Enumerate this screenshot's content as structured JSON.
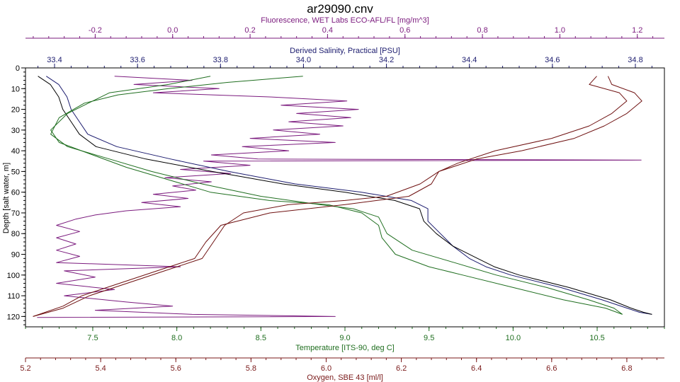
{
  "chart_data": {
    "type": "line",
    "title": "ar29090.cnv",
    "y_axis": {
      "label": "Depth [salt water, m]",
      "range": [
        0,
        125
      ],
      "inverted": true,
      "ticks": [
        0,
        10,
        20,
        30,
        40,
        50,
        60,
        70,
        80,
        90,
        100,
        110,
        120
      ]
    },
    "x_axes": [
      {
        "id": "fluorescence",
        "position": "top-outer",
        "label": "Fluorescence, WET Labs ECO-AFL/FL [mg/m^3]",
        "color": "#7b1b7e",
        "range": [
          -0.38,
          1.27
        ],
        "ticks": [
          "-0.2",
          "0.0",
          "0.2",
          "0.4",
          "0.6",
          "0.8",
          "1.0",
          "1.2"
        ]
      },
      {
        "id": "salinity",
        "position": "top-inner",
        "label": "Derived Salinity, Practical [PSU]",
        "color": "#1b1b6e",
        "range": [
          33.33,
          34.87
        ],
        "ticks": [
          "33.4",
          "33.6",
          "33.8",
          "34.0",
          "34.2",
          "34.4",
          "34.6",
          "34.8"
        ]
      },
      {
        "id": "temperature",
        "position": "bottom-inner",
        "label": "Temperature [ITS-90, deg C]",
        "color": "#1f6e1f",
        "range": [
          7.1,
          10.9
        ],
        "ticks": [
          "7.5",
          "8.0",
          "8.5",
          "9.0",
          "9.5",
          "10.0",
          "10.5"
        ]
      },
      {
        "id": "oxygen",
        "position": "bottom-outer",
        "label": "Oxygen, SBE 43 [ml/l]",
        "color": "#7a1a1a",
        "range": [
          5.2,
          6.9
        ],
        "ticks": [
          "5.2",
          "5.4",
          "5.6",
          "5.8",
          "6.0",
          "6.2",
          "6.4",
          "6.6",
          "6.8"
        ]
      }
    ],
    "grid": false,
    "legend": "none",
    "series": [
      {
        "axis": "fluorescence",
        "color": "#7b1b7e",
        "points": [
          [
            -0.15,
            4
          ],
          [
            0.05,
            6
          ],
          [
            -0.1,
            8
          ],
          [
            0.12,
            10
          ],
          [
            -0.05,
            12
          ],
          [
            0.25,
            14
          ],
          [
            0.45,
            16
          ],
          [
            0.28,
            18
          ],
          [
            0.48,
            20
          ],
          [
            0.32,
            22
          ],
          [
            0.46,
            24
          ],
          [
            0.3,
            26
          ],
          [
            0.44,
            28
          ],
          [
            0.26,
            30
          ],
          [
            0.38,
            32
          ],
          [
            0.2,
            34
          ],
          [
            0.42,
            36
          ],
          [
            0.18,
            38
          ],
          [
            0.3,
            40
          ],
          [
            0.1,
            42
          ],
          [
            0.22,
            44
          ],
          [
            1.21,
            44.5
          ],
          [
            0.08,
            45
          ],
          [
            0.2,
            47
          ],
          [
            0.02,
            49
          ],
          [
            0.15,
            51
          ],
          [
            -0.02,
            53
          ],
          [
            0.1,
            55
          ],
          [
            0.0,
            57
          ],
          [
            0.06,
            59
          ],
          [
            -0.05,
            61
          ],
          [
            0.04,
            63
          ],
          [
            -0.08,
            65
          ],
          [
            0.02,
            67
          ],
          [
            -0.12,
            69
          ],
          [
            -0.2,
            71
          ],
          [
            -0.25,
            73
          ],
          [
            -0.3,
            76
          ],
          [
            -0.24,
            79
          ],
          [
            -0.3,
            82
          ],
          [
            -0.25,
            85
          ],
          [
            -0.3,
            88
          ],
          [
            -0.24,
            91
          ],
          [
            -0.3,
            94
          ],
          [
            0.02,
            96
          ],
          [
            -0.28,
            98
          ],
          [
            -0.2,
            101
          ],
          [
            -0.3,
            104
          ],
          [
            -0.15,
            107
          ],
          [
            -0.28,
            110
          ],
          [
            -0.12,
            113
          ],
          [
            0.0,
            115
          ],
          [
            -0.2,
            117
          ],
          [
            0.05,
            119
          ],
          [
            0.42,
            120
          ],
          [
            -0.35,
            120.5
          ]
        ]
      },
      {
        "axis": "salinity",
        "color": "#1b1b6e",
        "points": [
          [
            33.38,
            4
          ],
          [
            33.41,
            8
          ],
          [
            33.43,
            14
          ],
          [
            33.44,
            20
          ],
          [
            33.46,
            26
          ],
          [
            33.48,
            32
          ],
          [
            33.55,
            38
          ],
          [
            33.68,
            44
          ],
          [
            33.82,
            50
          ],
          [
            33.98,
            56
          ],
          [
            34.14,
            60
          ],
          [
            34.26,
            64
          ],
          [
            34.3,
            68
          ],
          [
            34.3,
            74
          ],
          [
            34.33,
            80
          ],
          [
            34.36,
            86
          ],
          [
            34.4,
            92
          ],
          [
            34.44,
            96
          ],
          [
            34.5,
            100
          ],
          [
            34.62,
            106
          ],
          [
            34.72,
            112
          ],
          [
            34.78,
            116
          ],
          [
            34.81,
            118
          ],
          [
            34.84,
            119
          ]
        ]
      },
      {
        "axis": "salinity",
        "color": "#000000",
        "points": [
          [
            33.36,
            4
          ],
          [
            33.39,
            8
          ],
          [
            33.41,
            14
          ],
          [
            33.42,
            20
          ],
          [
            33.44,
            26
          ],
          [
            33.46,
            32
          ],
          [
            33.5,
            38
          ],
          [
            33.62,
            44
          ],
          [
            33.78,
            50
          ],
          [
            33.95,
            56
          ],
          [
            34.1,
            60
          ],
          [
            34.22,
            64
          ],
          [
            34.28,
            68
          ],
          [
            34.29,
            74
          ],
          [
            34.32,
            80
          ],
          [
            34.36,
            86
          ],
          [
            34.42,
            92
          ],
          [
            34.46,
            96
          ],
          [
            34.52,
            100
          ],
          [
            34.64,
            106
          ],
          [
            34.74,
            112
          ],
          [
            34.79,
            116
          ],
          [
            34.82,
            118
          ],
          [
            34.84,
            119
          ]
        ]
      },
      {
        "axis": "temperature",
        "color": "#1f6e1f",
        "points": [
          [
            8.2,
            4
          ],
          [
            7.95,
            8
          ],
          [
            7.6,
            12
          ],
          [
            7.5,
            16
          ],
          [
            7.35,
            22
          ],
          [
            7.25,
            30
          ],
          [
            7.3,
            36
          ],
          [
            7.5,
            42
          ],
          [
            7.7,
            48
          ],
          [
            7.95,
            54
          ],
          [
            8.2,
            60
          ],
          [
            8.55,
            64
          ],
          [
            8.9,
            66
          ],
          [
            9.1,
            70
          ],
          [
            9.2,
            76
          ],
          [
            9.22,
            82
          ],
          [
            9.3,
            90
          ],
          [
            9.5,
            96
          ],
          [
            9.7,
            100
          ],
          [
            10.0,
            106
          ],
          [
            10.3,
            112
          ],
          [
            10.55,
            116
          ],
          [
            10.65,
            119
          ]
        ]
      },
      {
        "axis": "temperature",
        "color": "#1f6e1f",
        "points": [
          [
            8.75,
            4
          ],
          [
            8.3,
            7
          ],
          [
            7.95,
            10
          ],
          [
            7.65,
            13
          ],
          [
            7.45,
            17
          ],
          [
            7.3,
            24
          ],
          [
            7.25,
            32
          ],
          [
            7.35,
            38
          ],
          [
            7.6,
            44
          ],
          [
            7.85,
            50
          ],
          [
            8.15,
            56
          ],
          [
            8.5,
            62
          ],
          [
            8.85,
            66
          ],
          [
            9.05,
            68
          ],
          [
            9.2,
            72
          ],
          [
            9.25,
            80
          ],
          [
            9.4,
            88
          ],
          [
            9.65,
            94
          ],
          [
            9.9,
            100
          ],
          [
            10.2,
            106
          ],
          [
            10.45,
            112
          ],
          [
            10.6,
            116
          ],
          [
            10.65,
            119
          ]
        ]
      },
      {
        "axis": "oxygen",
        "color": "#6e1010",
        "points": [
          [
            6.72,
            4
          ],
          [
            6.7,
            8
          ],
          [
            6.78,
            12
          ],
          [
            6.8,
            16
          ],
          [
            6.76,
            22
          ],
          [
            6.7,
            28
          ],
          [
            6.6,
            34
          ],
          [
            6.45,
            40
          ],
          [
            6.35,
            46
          ],
          [
            6.3,
            50
          ],
          [
            6.28,
            56
          ],
          [
            6.22,
            62
          ],
          [
            6.05,
            66
          ],
          [
            5.85,
            70
          ],
          [
            5.72,
            76
          ],
          [
            5.68,
            84
          ],
          [
            5.65,
            92
          ],
          [
            5.55,
            98
          ],
          [
            5.45,
            104
          ],
          [
            5.35,
            110
          ],
          [
            5.3,
            115
          ],
          [
            5.22,
            120
          ]
        ]
      },
      {
        "axis": "oxygen",
        "color": "#6e1010",
        "points": [
          [
            6.75,
            4
          ],
          [
            6.76,
            8
          ],
          [
            6.82,
            12
          ],
          [
            6.84,
            16
          ],
          [
            6.8,
            22
          ],
          [
            6.74,
            28
          ],
          [
            6.66,
            34
          ],
          [
            6.52,
            40
          ],
          [
            6.4,
            44
          ],
          [
            6.3,
            50
          ],
          [
            6.25,
            56
          ],
          [
            6.16,
            62
          ],
          [
            6.05,
            64
          ],
          [
            5.9,
            66
          ],
          [
            5.78,
            70
          ],
          [
            5.73,
            76
          ],
          [
            5.7,
            84
          ],
          [
            5.67,
            92
          ],
          [
            5.57,
            98
          ],
          [
            5.47,
            104
          ],
          [
            5.37,
            110
          ],
          [
            5.3,
            116
          ],
          [
            5.22,
            120
          ]
        ]
      }
    ]
  }
}
